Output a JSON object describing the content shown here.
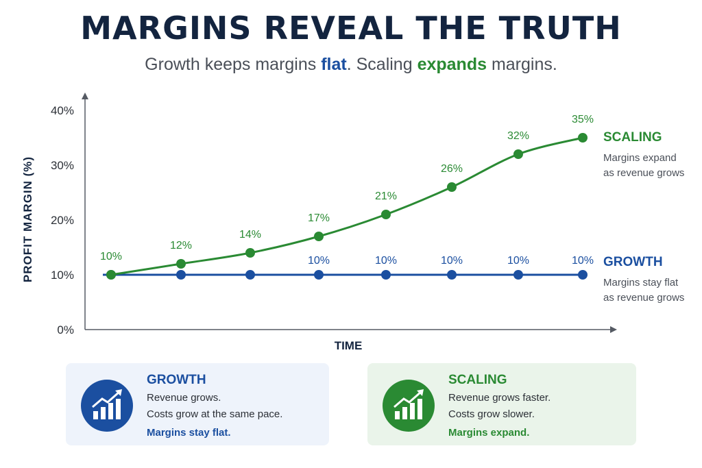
{
  "title": "MARGINS REVEAL THE TRUTH",
  "subtitle": {
    "part1": "Growth keeps margins ",
    "flat": "flat",
    "part2": ". Scaling ",
    "expands": "expands",
    "part3": " margins."
  },
  "colors": {
    "growth": "#1b4fa0",
    "scaling": "#2a8a33",
    "axis": "#555a63",
    "title": "#13243f"
  },
  "chart_data": {
    "type": "line",
    "ylabel": "PROFIT MARGIN (%)",
    "xlabel": "TIME",
    "ylim": [
      0,
      40
    ],
    "yticks": [
      0,
      10,
      20,
      30,
      40
    ],
    "ytick_labels": [
      "0%",
      "10%",
      "20%",
      "30%",
      "40%"
    ],
    "grid": false,
    "legend": "right",
    "points": 8,
    "series": [
      {
        "name": "SCALING",
        "color": "#2a8a33",
        "values": [
          10,
          12,
          14,
          17,
          21,
          26,
          32,
          35
        ],
        "labels": [
          "10%",
          "12%",
          "14%",
          "17%",
          "21%",
          "26%",
          "32%",
          "35%"
        ],
        "note": [
          "Margins expand",
          "as revenue grows"
        ]
      },
      {
        "name": "GROWTH",
        "color": "#1b4fa0",
        "values": [
          10,
          10,
          10,
          10,
          10,
          10,
          10,
          10
        ],
        "labels": [
          "",
          "",
          "",
          "10%",
          "10%",
          "10%",
          "10%",
          "10%"
        ],
        "note": [
          "Margins stay flat",
          "as revenue grows"
        ]
      }
    ]
  },
  "cards": {
    "growth": {
      "title": "GROWTH",
      "line1": "Revenue grows.",
      "line2": "Costs grow at the same pace.",
      "line3": "Margins stay flat.",
      "icon": "bar-chart-up-arrow-icon"
    },
    "scaling": {
      "title": "SCALING",
      "line1": "Revenue grows faster.",
      "line2": "Costs grow slower.",
      "line3": "Margins expand.",
      "icon": "bar-chart-up-arrow-icon"
    }
  }
}
